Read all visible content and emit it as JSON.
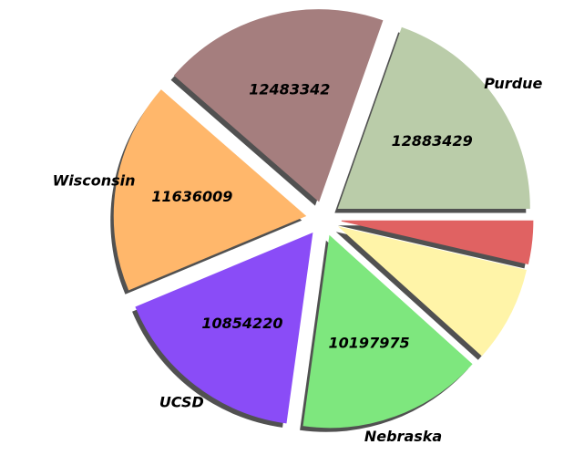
{
  "chart_data": {
    "type": "pie",
    "categories": [
      "Purdue",
      null,
      "Wisconsin",
      "UCSD",
      "Nebraska",
      null,
      null
    ],
    "values": [
      12883429,
      12483342,
      11636009,
      10854220,
      10197975,
      5300000,
      2370000
    ],
    "value_labels": [
      "12883429",
      "12483342",
      "11636009",
      "10854220",
      "10197975",
      null,
      null
    ],
    "colors": [
      "#bacca9",
      "#a57e7e",
      "#ffb76b",
      "#8a4cf7",
      "#7ee77e",
      "#fff4a8",
      "#e06262"
    ],
    "start_angle": 0,
    "counterclockwise": true,
    "explode": true,
    "shadow": true
  }
}
